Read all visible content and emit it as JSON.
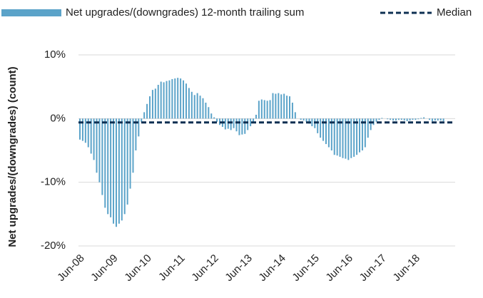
{
  "chart_data": {
    "type": "bar",
    "y_axis_label": "Net upgrades/(downgrades) (count)",
    "legend_position": "top",
    "series": [
      {
        "name": "Net upgrades/(downgrades) 12-month trailing sum",
        "color": "#5ba3c9",
        "values": [
          -3.3,
          -3.5,
          -3.8,
          -4.5,
          -5.5,
          -6.5,
          -8.5,
          -10,
          -12,
          -14,
          -15,
          -15.5,
          -16.5,
          -17,
          -16.5,
          -16,
          -15,
          -13.5,
          -11,
          -8.5,
          -5,
          -2.8,
          -0.5,
          1,
          2.3,
          3.5,
          4.5,
          4.7,
          5.3,
          5.8,
          5.7,
          5.9,
          6,
          6.2,
          6.3,
          6.4,
          6.3,
          6,
          5.5,
          4.8,
          4.2,
          3.7,
          4,
          3.6,
          3.2,
          2.5,
          1.8,
          0.8,
          0.2,
          -0.5,
          -1,
          -1.3,
          -1.7,
          -1.6,
          -1.8,
          -1.5,
          -2,
          -2.6,
          -2.5,
          -2.4,
          -1.8,
          -1.2,
          -0.6,
          0.6,
          2.8,
          3,
          2.9,
          2.8,
          2.9,
          4,
          3.9,
          4,
          3.8,
          3.9,
          3.6,
          3.5,
          2.5,
          1,
          0,
          -0.2,
          -0.3,
          -0.5,
          -0.8,
          -1.2,
          -1.5,
          -2.3,
          -3,
          -3.5,
          -4,
          -4.5,
          -5,
          -5.7,
          -5.8,
          -6,
          -6.2,
          -6.3,
          -6.5,
          -6.2,
          -6,
          -5.7,
          -5.3,
          -5,
          -4.5,
          -3,
          -1.8,
          -1,
          -0.5,
          -0.2,
          0.1,
          0,
          -0.1,
          -0.2,
          -0.3,
          -0.3,
          -0.2,
          -0.2,
          -0.3,
          -0.4,
          -0.3,
          -0.2,
          -0.2,
          -0.1,
          0.1,
          0.2,
          0,
          -0.2,
          -0.4,
          -0.3,
          -0.3,
          -0.3,
          -0.4
        ]
      }
    ],
    "median": {
      "name": "Median",
      "color": "#0d2f52",
      "value": -0.6
    },
    "categories": [
      "Jun-08",
      null,
      null,
      null,
      null,
      null,
      null,
      null,
      null,
      null,
      null,
      null,
      "Jun-09",
      null,
      null,
      null,
      null,
      null,
      null,
      null,
      null,
      null,
      null,
      null,
      "Jun-10",
      null,
      null,
      null,
      null,
      null,
      null,
      null,
      null,
      null,
      null,
      null,
      "Jun-11",
      null,
      null,
      null,
      null,
      null,
      null,
      null,
      null,
      null,
      null,
      null,
      "Jun-12",
      null,
      null,
      null,
      null,
      null,
      null,
      null,
      null,
      null,
      null,
      null,
      "Jun-13",
      null,
      null,
      null,
      null,
      null,
      null,
      null,
      null,
      null,
      null,
      null,
      "Jun-14",
      null,
      null,
      null,
      null,
      null,
      null,
      null,
      null,
      null,
      null,
      null,
      "Jun-15",
      null,
      null,
      null,
      null,
      null,
      null,
      null,
      null,
      null,
      null,
      null,
      "Jun-16",
      null,
      null,
      null,
      null,
      null,
      null,
      null,
      null,
      null,
      null,
      null,
      "Jun-17",
      null,
      null,
      null,
      null,
      null,
      null,
      null,
      null,
      null,
      null,
      null,
      "Jun-18",
      null,
      null,
      null,
      null,
      null,
      null,
      null,
      null,
      null,
      null
    ],
    "ylim": [
      -20,
      10
    ],
    "yticks": [
      {
        "value": -20,
        "label": "-20%"
      },
      {
        "value": -10,
        "label": "-10%"
      },
      {
        "value": 0,
        "label": "0%"
      },
      {
        "value": 10,
        "label": "10%"
      }
    ],
    "grid": true
  }
}
